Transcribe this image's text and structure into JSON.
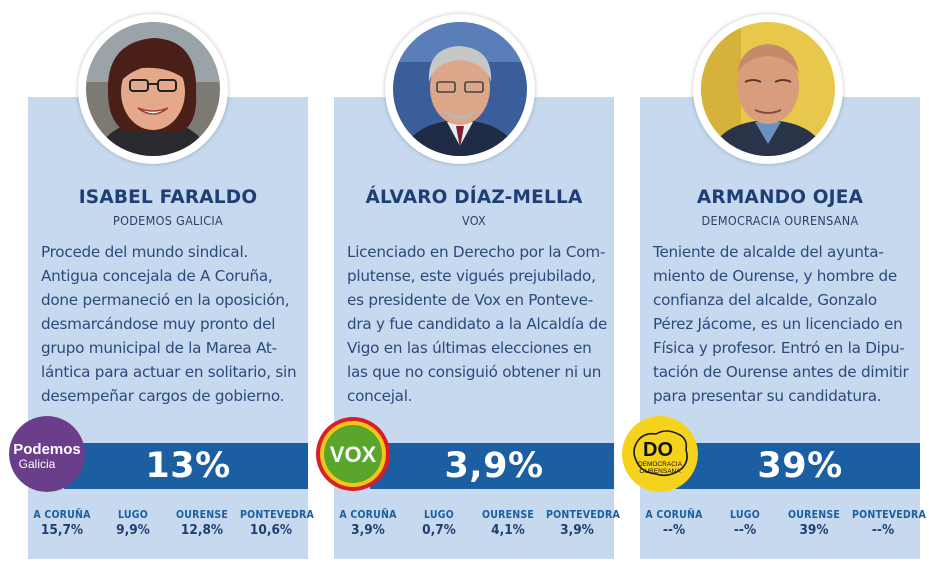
{
  "colors": {
    "card_bg": "#c6d9ee",
    "bar_blue": "#1b5ea1",
    "title_navy": "#1f3f74",
    "podemos_purple": "#6a3e8a",
    "vox_green": "#5aa52c",
    "do_yellow": "#f5d21b"
  },
  "candidates": [
    {
      "name": "ISABEL FARALDO",
      "party": "PODEMOS GALICIA",
      "bio": "Procede del mundo sindical.\nAntigua concejala de A Coruña,\ndone permaneció en la oposición,\ndesmarcándose muy pronto del\ngrupo municipal de la Marea At-\nlántica para actuar en solitario, sin\ndesempeñar cargos de gobierno.",
      "percentage": "13%",
      "logo": {
        "icon": "podemos-galicia-logo",
        "line1": "Podemos",
        "line2": "Galicia"
      },
      "photo_icon": "portrait-woman-icon",
      "provinces": [
        {
          "name": "A CORUÑA",
          "value": "15,7%"
        },
        {
          "name": "LUGO",
          "value": "9,9%"
        },
        {
          "name": "OURENSE",
          "value": "12,8%"
        },
        {
          "name": "PONTEVEDRA",
          "value": "10,6%"
        }
      ]
    },
    {
      "name": "ÁLVARO DÍAZ-MELLA",
      "party": "VOX",
      "bio": "Licenciado en Derecho por la Com-\nplutense, este vigués prejubilado,\nes presidente de Vox en Ponteve-\ndra y fue candidato a la Alcaldía de\nVigo en las últimas elecciones en\nlas que no consiguió obtener ni un\nconcejal.",
      "percentage": "3,9%",
      "logo": {
        "icon": "vox-logo",
        "line1": "VOX"
      },
      "photo_icon": "portrait-man-glasses-icon",
      "provinces": [
        {
          "name": "A CORUÑA",
          "value": "3,9%"
        },
        {
          "name": "LUGO",
          "value": "0,7%"
        },
        {
          "name": "OURENSE",
          "value": "4,1%"
        },
        {
          "name": "PONTEVEDRA",
          "value": "3,9%"
        }
      ]
    },
    {
      "name": "ARMANDO OJEA",
      "party": "DEMOCRACIA OURENSANA",
      "bio": "Teniente de alcalde del ayunta-\nmiento de Ourense, y hombre de\nconfianza del alcalde, Gonzalo\nPérez Jácome, es un licenciado en\nFísica y profesor. Entró en la Dipu-\ntación de Ourense antes de dimitir\npara presentar su candidatura.",
      "percentage": "39%",
      "logo": {
        "icon": "democracia-ourensana-logo",
        "line1": "DO",
        "line2": "DEMOCRACIA",
        "line3": "OURENSANA"
      },
      "photo_icon": "portrait-man-bald-icon",
      "provinces": [
        {
          "name": "A CORUÑA",
          "value": "--%"
        },
        {
          "name": "LUGO",
          "value": "--%"
        },
        {
          "name": "OURENSE",
          "value": "39%"
        },
        {
          "name": "PONTEVEDRA",
          "value": "--%"
        }
      ]
    }
  ]
}
